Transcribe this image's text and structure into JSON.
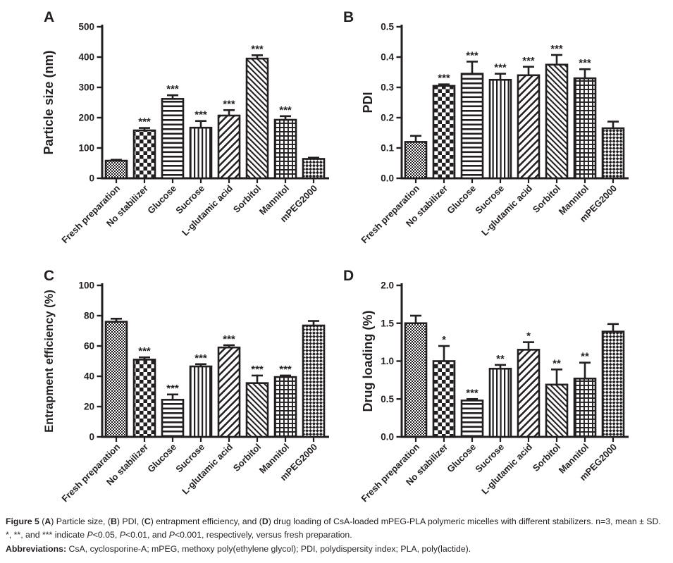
{
  "colors": {
    "ink": "#231f20",
    "star": "#4b4b55",
    "background": "#ffffff"
  },
  "figure": {
    "categories": [
      "Fresh preparation",
      "No stabilizer",
      "Glucose",
      "Sucrose",
      "L-glutamic acid",
      "Sorbitol",
      "Mannitol",
      "mPEG2000"
    ],
    "bar_patterns": [
      "checker-fine",
      "checker-coarse",
      "hlines",
      "vlines",
      "diag-up",
      "diag-down",
      "grid",
      "weave"
    ]
  },
  "chart_data": [
    {
      "type": "bar",
      "panel": "A",
      "ylabel": "Particle size (nm)",
      "ylim": [
        0,
        500
      ],
      "y_tick_labels": [
        "0",
        "100",
        "200",
        "300",
        "400",
        "500"
      ],
      "categories": [
        "Fresh preparation",
        "No stabilizer",
        "Glucose",
        "Sucrose",
        "L-glutamic acid",
        "Sorbitol",
        "Mannitol",
        "mPEG2000"
      ],
      "values": [
        58,
        158,
        262,
        167,
        207,
        395,
        193,
        64
      ],
      "errors": [
        3,
        8,
        12,
        22,
        18,
        11,
        12,
        4
      ],
      "significance": [
        "",
        "***",
        "***",
        "***",
        "***",
        "***",
        "***",
        ""
      ]
    },
    {
      "type": "bar",
      "panel": "B",
      "ylabel": "PDI",
      "ylim": [
        0,
        0.5
      ],
      "y_tick_labels": [
        "0.0",
        "0.1",
        "0.2",
        "0.3",
        "0.4",
        "0.5"
      ],
      "categories": [
        "Fresh preparation",
        "No stabilizer",
        "Glucose",
        "Sucrose",
        "L-glutamic acid",
        "Sorbitol",
        "Mannitol",
        "mPEG2000"
      ],
      "values": [
        0.12,
        0.305,
        0.345,
        0.325,
        0.34,
        0.375,
        0.33,
        0.165
      ],
      "errors": [
        0.02,
        0.005,
        0.04,
        0.02,
        0.028,
        0.032,
        0.03,
        0.022
      ],
      "significance": [
        "",
        "***",
        "***",
        "***",
        "***",
        "***",
        "***",
        ""
      ]
    },
    {
      "type": "bar",
      "panel": "C",
      "ylabel": "Entrapment efficiency (%)",
      "ylim": [
        0,
        100
      ],
      "y_tick_labels": [
        "0",
        "20",
        "40",
        "60",
        "80",
        "100"
      ],
      "categories": [
        "Fresh preparation",
        "No stabilizer",
        "Glucose",
        "Sucrose",
        "L-glutamic acid",
        "Sorbitol",
        "Mannitol",
        "mPEG2000"
      ],
      "values": [
        76,
        51,
        24.5,
        46.5,
        59,
        35.5,
        39.5,
        73.5
      ],
      "errors": [
        2,
        1.5,
        3.5,
        1.5,
        1.5,
        5,
        1,
        3
      ],
      "significance": [
        "",
        "***",
        "***",
        "***",
        "***",
        "***",
        "***",
        ""
      ]
    },
    {
      "type": "bar",
      "panel": "D",
      "ylabel": "Drug loading (%)",
      "ylim": [
        0,
        2.0
      ],
      "y_tick_labels": [
        "0.0",
        "0.5",
        "1.0",
        "1.5",
        "2.0"
      ],
      "categories": [
        "Fresh preparation",
        "No stabilizer",
        "Glucose",
        "Sucrose",
        "L-glutamic acid",
        "Sorbitol",
        "Mannitol",
        "mPEG2000"
      ],
      "values": [
        1.5,
        1.0,
        0.48,
        0.9,
        1.15,
        0.69,
        0.77,
        1.39
      ],
      "errors": [
        0.1,
        0.2,
        0.02,
        0.05,
        0.1,
        0.2,
        0.21,
        0.1
      ],
      "significance": [
        "",
        "*",
        "***",
        "**",
        "*",
        "**",
        "**",
        ""
      ]
    }
  ],
  "caption": {
    "lines": [
      [
        {
          "t": "Figure 5 ",
          "b": 1
        },
        {
          "t": "("
        },
        {
          "t": "A",
          "b": 1
        },
        {
          "t": ") Particle size, ("
        },
        {
          "t": "B",
          "b": 1
        },
        {
          "t": ") PDI, ("
        },
        {
          "t": "C",
          "b": 1
        },
        {
          "t": ") entrapment efficiency, and ("
        },
        {
          "t": "D",
          "b": 1
        },
        {
          "t": ") drug loading of CsA-loaded mPEG-PLA polymeric micelles with different stabilizers. n=3, mean ± SD."
        }
      ],
      [
        {
          "t": "*, **, and *** indicate "
        },
        {
          "t": "P",
          "i": 1
        },
        {
          "t": "<0.05, "
        },
        {
          "t": "P",
          "i": 1
        },
        {
          "t": "<0.01, and "
        },
        {
          "t": "P",
          "i": 1
        },
        {
          "t": "<0.001, respectively, versus fresh preparation."
        }
      ],
      [
        {
          "t": "Abbreviations: ",
          "b": 1
        },
        {
          "t": "CsA, cyclosporine-A; mPEG, methoxy poly(ethylene glycol); PDI, polydispersity index; PLA, poly(lactide)."
        }
      ]
    ]
  }
}
